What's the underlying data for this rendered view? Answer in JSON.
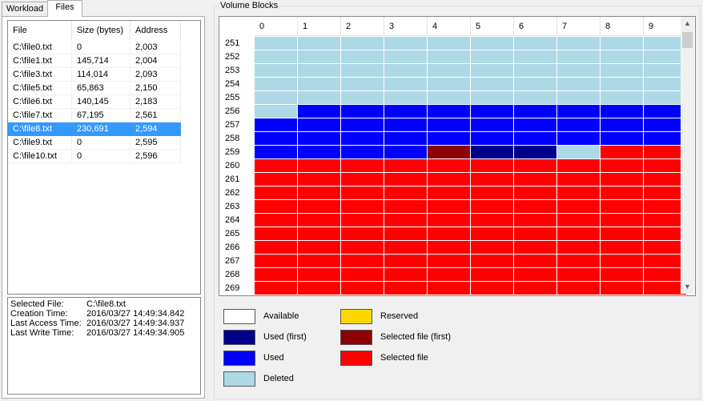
{
  "tabs": [
    "Workload",
    "Files"
  ],
  "files_table": {
    "headers": [
      "File",
      "Size (bytes)",
      "Address"
    ],
    "rows": [
      {
        "file": "C:\\file0.txt",
        "size": "0",
        "address": "2,003"
      },
      {
        "file": "C:\\file1.txt",
        "size": "145,714",
        "address": "2,004"
      },
      {
        "file": "C:\\file3.txt",
        "size": "114,014",
        "address": "2,093"
      },
      {
        "file": "C:\\file5.txt",
        "size": "65,863",
        "address": "2,150"
      },
      {
        "file": "C:\\file6.txt",
        "size": "140,145",
        "address": "2,183"
      },
      {
        "file": "C:\\file7.txt",
        "size": "67,195",
        "address": "2,561"
      },
      {
        "file": "C:\\file8.txt",
        "size": "230,691",
        "address": "2,594",
        "selected": true
      },
      {
        "file": "C:\\file9.txt",
        "size": "0",
        "address": "2,595"
      },
      {
        "file": "C:\\file10.txt",
        "size": "0",
        "address": "2,596"
      }
    ]
  },
  "file_info": {
    "selected_file_label": "Selected File:",
    "selected_file": "C:\\file8.txt",
    "creation_time_label": "Creation Time:",
    "creation_time": "2016/03/27 14:49:34.842",
    "last_access_label": "Last Access Time:",
    "last_access": "2016/03/27 14:49:34.937",
    "last_write_label": "Last Write Time:",
    "last_write": "2016/03/27 14:49:34.905"
  },
  "volume_blocks": {
    "title": "Volume Blocks",
    "column_headers": [
      "0",
      "1",
      "2",
      "3",
      "4",
      "5",
      "6",
      "7",
      "8",
      "9"
    ],
    "rows": [
      {
        "label": "251",
        "cells": [
          "deleted",
          "deleted",
          "deleted",
          "deleted",
          "deleted",
          "deleted",
          "deleted",
          "deleted",
          "deleted",
          "deleted"
        ]
      },
      {
        "label": "252",
        "cells": [
          "deleted",
          "deleted",
          "deleted",
          "deleted",
          "deleted",
          "deleted",
          "deleted",
          "deleted",
          "deleted",
          "deleted"
        ]
      },
      {
        "label": "253",
        "cells": [
          "deleted",
          "deleted",
          "deleted",
          "deleted",
          "deleted",
          "deleted",
          "deleted",
          "deleted",
          "deleted",
          "deleted"
        ]
      },
      {
        "label": "254",
        "cells": [
          "deleted",
          "deleted",
          "deleted",
          "deleted",
          "deleted",
          "deleted",
          "deleted",
          "deleted",
          "deleted",
          "deleted"
        ]
      },
      {
        "label": "255",
        "cells": [
          "deleted",
          "deleted",
          "deleted",
          "deleted",
          "deleted",
          "deleted",
          "deleted",
          "deleted",
          "deleted",
          "deleted"
        ]
      },
      {
        "label": "256",
        "cells": [
          "deleted",
          "used",
          "used",
          "used",
          "used",
          "used",
          "used",
          "used",
          "used",
          "used"
        ]
      },
      {
        "label": "257",
        "cells": [
          "used",
          "used",
          "used",
          "used",
          "used",
          "used",
          "used",
          "used",
          "used",
          "used"
        ]
      },
      {
        "label": "258",
        "cells": [
          "used",
          "used",
          "used",
          "used",
          "used",
          "used",
          "used",
          "used",
          "used",
          "used"
        ]
      },
      {
        "label": "259",
        "cells": [
          "used",
          "used",
          "used",
          "used",
          "selected_first",
          "used_first",
          "used_first",
          "deleted",
          "selected",
          "selected"
        ]
      },
      {
        "label": "260",
        "cells": [
          "selected",
          "selected",
          "selected",
          "selected",
          "selected",
          "selected",
          "selected",
          "selected",
          "selected",
          "selected"
        ]
      },
      {
        "label": "261",
        "cells": [
          "selected",
          "selected",
          "selected",
          "selected",
          "selected",
          "selected",
          "selected",
          "selected",
          "selected",
          "selected"
        ]
      },
      {
        "label": "262",
        "cells": [
          "selected",
          "selected",
          "selected",
          "selected",
          "selected",
          "selected",
          "selected",
          "selected",
          "selected",
          "selected"
        ]
      },
      {
        "label": "263",
        "cells": [
          "selected",
          "selected",
          "selected",
          "selected",
          "selected",
          "selected",
          "selected",
          "selected",
          "selected",
          "selected"
        ]
      },
      {
        "label": "264",
        "cells": [
          "selected",
          "selected",
          "selected",
          "selected",
          "selected",
          "selected",
          "selected",
          "selected",
          "selected",
          "selected"
        ]
      },
      {
        "label": "265",
        "cells": [
          "selected",
          "selected",
          "selected",
          "selected",
          "selected",
          "selected",
          "selected",
          "selected",
          "selected",
          "selected"
        ]
      },
      {
        "label": "266",
        "cells": [
          "selected",
          "selected",
          "selected",
          "selected",
          "selected",
          "selected",
          "selected",
          "selected",
          "selected",
          "selected"
        ]
      },
      {
        "label": "267",
        "cells": [
          "selected",
          "selected",
          "selected",
          "selected",
          "selected",
          "selected",
          "selected",
          "selected",
          "selected",
          "selected"
        ]
      },
      {
        "label": "268",
        "cells": [
          "selected",
          "selected",
          "selected",
          "selected",
          "selected",
          "selected",
          "selected",
          "selected",
          "selected",
          "selected"
        ]
      },
      {
        "label": "269",
        "cells": [
          "selected",
          "selected",
          "selected",
          "selected",
          "selected",
          "selected",
          "selected",
          "selected",
          "selected",
          "selected"
        ]
      }
    ]
  },
  "colors": {
    "available": "#ffffff",
    "used_first": "#00008b",
    "used": "#0000ff",
    "deleted": "#add8e6",
    "reserved": "#ffd700",
    "selected_first": "#8b0000",
    "selected": "#ff0000"
  },
  "legend": [
    {
      "key": "available",
      "label": "Available"
    },
    {
      "key": "used_first",
      "label": "Used (first)"
    },
    {
      "key": "used",
      "label": "Used"
    },
    {
      "key": "deleted",
      "label": "Deleted"
    },
    {
      "key": "reserved",
      "label": "Reserved"
    },
    {
      "key": "selected_first",
      "label": "Selected file (first)"
    },
    {
      "key": "selected",
      "label": "Selected file"
    }
  ],
  "scrollbar": {
    "up_icon": "chevron-up-icon",
    "down_icon": "chevron-down-icon"
  }
}
